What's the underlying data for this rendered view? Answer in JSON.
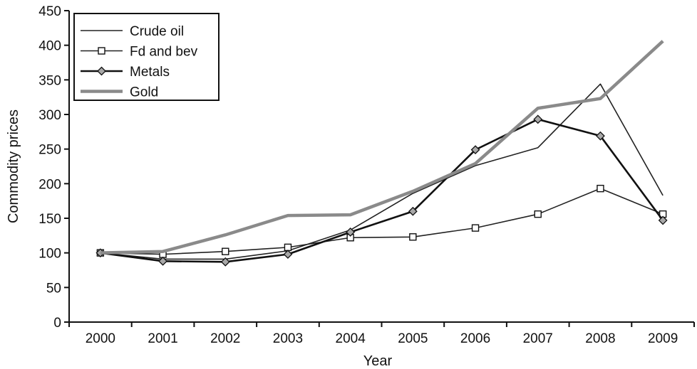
{
  "chart_data": {
    "type": "line",
    "xlabel": "Year",
    "ylabel": "Commodity prices",
    "ylim": [
      0,
      450
    ],
    "y_ticks": [
      0,
      50,
      100,
      150,
      200,
      250,
      300,
      350,
      400,
      450
    ],
    "categories": [
      "2000",
      "2001",
      "2002",
      "2003",
      "2004",
      "2005",
      "2006",
      "2007",
      "2008",
      "2009"
    ],
    "grid": false,
    "legend_position": "top-left",
    "series": [
      {
        "name": "Crude oil",
        "marker": "none",
        "color": "#222222",
        "values": [
          100,
          91,
          91,
          103,
          133,
          186,
          226,
          252,
          344,
          183
        ]
      },
      {
        "name": "Fd and bev",
        "marker": "square",
        "color": "#222222",
        "values": [
          100,
          98,
          102,
          108,
          122,
          123,
          136,
          156,
          193,
          156
        ]
      },
      {
        "name": "Metals",
        "marker": "diamond",
        "color": "#111111",
        "values": [
          100,
          88,
          87,
          98,
          130,
          160,
          249,
          293,
          269,
          147
        ]
      },
      {
        "name": "Gold",
        "marker": "none",
        "color": "#8a8a8a",
        "values": [
          100,
          102,
          126,
          154,
          155,
          189,
          229,
          309,
          323,
          406
        ]
      }
    ]
  }
}
